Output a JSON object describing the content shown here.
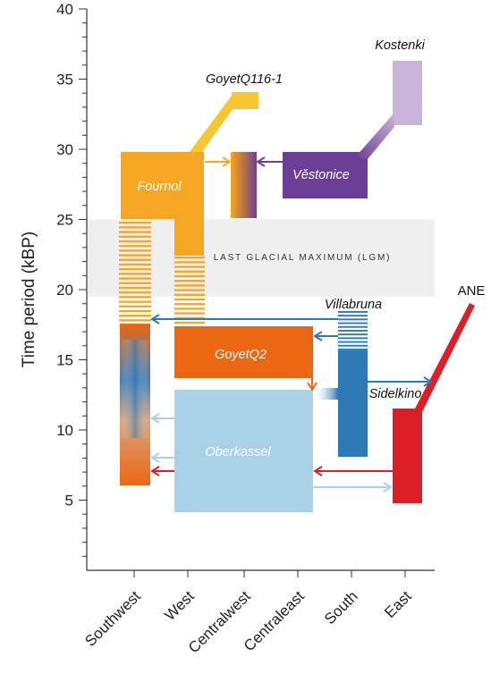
{
  "chart_data": {
    "type": "diagram",
    "title": "",
    "ylabel": "Time period (kBP)",
    "ylim": [
      0,
      40
    ],
    "y_ticks": [
      5,
      10,
      15,
      20,
      25,
      30,
      35,
      40
    ],
    "minor_tick_step": 1,
    "categories": [
      "Southwest",
      "West",
      "Centralwest",
      "Centraleast",
      "South",
      "East"
    ],
    "lgm": {
      "label": "LAST GLACIAL MAXIMUM (LGM)",
      "from": 19.5,
      "to": 25,
      "color": "#efefef"
    },
    "colors": {
      "fournol": "#f5a623",
      "goyetq116": "#f6c531",
      "vestonice": "#6b3f96",
      "kostenki": "#c9b3d9",
      "goyetq2": "#ec6713",
      "oberkassel": "#a9d1e7",
      "villabruna": "#2f78b6",
      "ane": "#db1f26"
    },
    "populations": [
      {
        "name": "Fournol",
        "x_from": "Southwest",
        "x_to": "West",
        "y_from": 26,
        "y_to": 31,
        "color": "fournol"
      },
      {
        "name": "GoyetQ116-1",
        "x_from": "Centralwest",
        "x_to": "Centralwest",
        "y_from": 34,
        "y_to": 35.2,
        "color": "goyetq116"
      },
      {
        "name": "Věstonice",
        "x_from": "Centraleast",
        "x_to": "South",
        "y_from": 27.5,
        "y_to": 31,
        "color": "vestonice"
      },
      {
        "name": "Kostenki",
        "x_from": "East",
        "x_to": "East",
        "y_from": 33,
        "y_to": 37.5,
        "color": "kostenki"
      },
      {
        "name": "GoyetQ2",
        "x_from": "West",
        "x_to": "Centraleast",
        "y_from": 15,
        "y_to": 18.5,
        "color": "goyetq2"
      },
      {
        "name": "Oberkassel",
        "x_from": "West",
        "x_to": "Centraleast",
        "y_from": 5.3,
        "y_to": 14,
        "color": "oberkassel"
      },
      {
        "name": "Villabruna",
        "x_from": "South",
        "x_to": "South",
        "y_from": 9.2,
        "y_to": 16.5,
        "color": "villabruna"
      },
      {
        "name": "Sidelkino",
        "x_from": "East",
        "x_to": "East",
        "y_from": 5.8,
        "y_to": 12.5,
        "color": "ane"
      },
      {
        "name": "ANE",
        "x_from": "East",
        "x_to": "East",
        "y_from": 12.5,
        "y_to": 20,
        "color": "ane"
      }
    ]
  }
}
